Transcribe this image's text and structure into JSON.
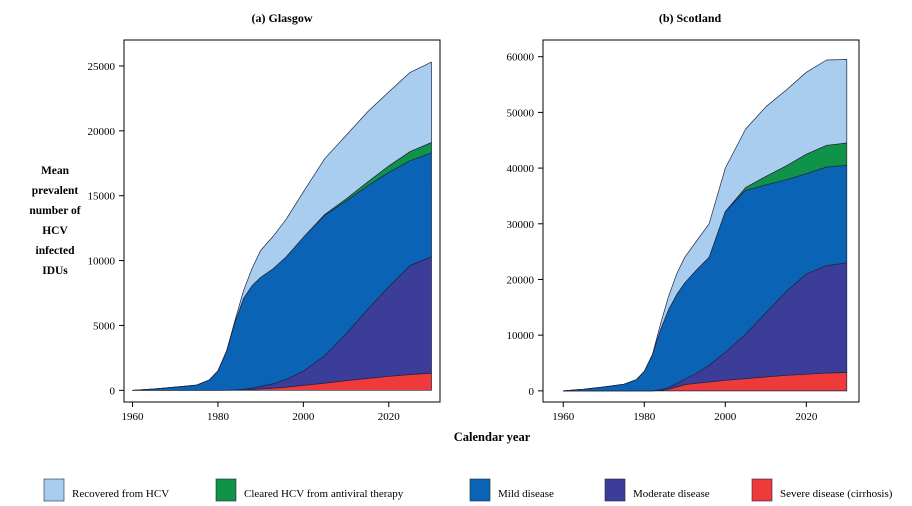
{
  "figure": {
    "ylabel_lines": [
      "Mean",
      "prevalent",
      "number of",
      "HCV",
      "infected",
      "IDUs"
    ],
    "xlabel": "Calendar year"
  },
  "legend": [
    {
      "key": "recovered",
      "label": "Recovered from HCV",
      "color": "#a9cdee"
    },
    {
      "key": "cleared",
      "label": "Cleared HCV from antiviral therapy",
      "color": "#0f9348"
    },
    {
      "key": "mild",
      "label": "Mild disease",
      "color": "#0b63b5"
    },
    {
      "key": "moderate",
      "label": "Moderate disease",
      "color": "#3b3d99"
    },
    {
      "key": "severe",
      "label": "Severe disease (cirrhosis)",
      "color": "#ee3a3a"
    }
  ],
  "chart_data": [
    {
      "type": "area",
      "stacked": true,
      "title": "(a) Glasgow",
      "xlabel": "Calendar year",
      "xlim": [
        1958,
        2032
      ],
      "ylim": [
        -900,
        27000
      ],
      "xticks": [
        1960,
        1980,
        2000,
        2020
      ],
      "yticks": [
        0,
        5000,
        10000,
        15000,
        20000,
        25000
      ],
      "x": [
        1960,
        1965,
        1970,
        1975,
        1978,
        1980,
        1982,
        1984,
        1986,
        1988,
        1990,
        1993,
        1996,
        2000,
        2005,
        2010,
        2015,
        2020,
        2025,
        2030
      ],
      "series": [
        {
          "name": "Severe disease (cirrhosis)",
          "key": "severe",
          "values": [
            0,
            0,
            0,
            0,
            0,
            0,
            0,
            10,
            30,
            60,
            100,
            170,
            250,
            380,
            560,
            750,
            920,
            1080,
            1220,
            1330
          ]
        },
        {
          "name": "Moderate disease",
          "key": "moderate",
          "values": [
            0,
            0,
            0,
            0,
            0,
            0,
            10,
            30,
            60,
            110,
            200,
            350,
            600,
            1100,
            2100,
            3600,
            5300,
            6900,
            8400,
            8970
          ]
        },
        {
          "name": "Mild disease",
          "key": "mild",
          "values": [
            0,
            100,
            250,
            400,
            800,
            1500,
            3000,
            5200,
            7000,
            7900,
            8400,
            8880,
            9450,
            10320,
            10840,
            10250,
            9530,
            8820,
            8080,
            8000
          ]
        },
        {
          "name": "Cleared HCV from antiviral therapy",
          "key": "cleared",
          "values": [
            0,
            0,
            0,
            0,
            0,
            0,
            0,
            0,
            0,
            0,
            0,
            0,
            0,
            0,
            50,
            150,
            300,
            500,
            700,
            800
          ]
        },
        {
          "name": "Recovered from HCV",
          "key": "recovered",
          "values": [
            0,
            0,
            0,
            0,
            0,
            0,
            0,
            160,
            610,
            1330,
            2080,
            2500,
            2900,
            3500,
            4300,
            4900,
            5400,
            5700,
            6100,
            6200
          ]
        }
      ]
    },
    {
      "type": "area",
      "stacked": true,
      "title": "(b) Scotland",
      "xlabel": "Calendar year",
      "xlim": [
        1955,
        2033
      ],
      "ylim": [
        -2000,
        63000
      ],
      "xticks": [
        1960,
        1980,
        2000,
        2020
      ],
      "yticks": [
        0,
        10000,
        20000,
        30000,
        40000,
        50000,
        60000
      ],
      "x": [
        1960,
        1965,
        1970,
        1975,
        1978,
        1980,
        1982,
        1984,
        1986,
        1988,
        1990,
        1993,
        1996,
        2000,
        2005,
        2010,
        2015,
        2020,
        2025,
        2030
      ],
      "series": [
        {
          "name": "Severe disease (cirrhosis)",
          "key": "severe",
          "values": [
            0,
            0,
            0,
            0,
            0,
            0,
            0,
            100,
            300,
            700,
            1100,
            1400,
            1600,
            1900,
            2200,
            2500,
            2800,
            3000,
            3200,
            3300
          ]
        },
        {
          "name": "Moderate disease",
          "key": "moderate",
          "values": [
            0,
            0,
            0,
            0,
            0,
            0,
            0,
            100,
            300,
            600,
            1000,
            1800,
            3000,
            5000,
            8000,
            11500,
            15000,
            18000,
            19300,
            19700
          ]
        },
        {
          "name": "Mild disease",
          "key": "mild",
          "values": [
            0,
            300,
            700,
            1200,
            2000,
            3500,
            6500,
            10800,
            14000,
            16000,
            17300,
            18600,
            19400,
            25300,
            25800,
            23000,
            20100,
            18000,
            17700,
            17500
          ]
        },
        {
          "name": "Cleared HCV from antiviral therapy",
          "key": "cleared",
          "values": [
            0,
            0,
            0,
            0,
            0,
            0,
            0,
            0,
            0,
            0,
            0,
            0,
            0,
            0,
            500,
            1500,
            2500,
            3500,
            3900,
            4000
          ]
        },
        {
          "name": "Recovered from HCV",
          "key": "recovered",
          "values": [
            0,
            0,
            0,
            0,
            0,
            0,
            0,
            1000,
            2400,
            3700,
            4600,
            5200,
            6000,
            7800,
            10500,
            12500,
            13600,
            14700,
            15300,
            15000
          ]
        }
      ]
    }
  ]
}
